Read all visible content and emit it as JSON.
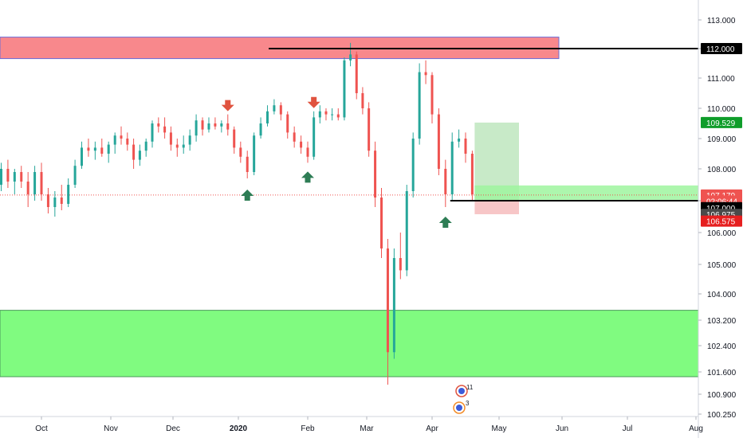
{
  "chart_data": {
    "type": "candlestick",
    "y_axis": {
      "ticks": [
        "113.000",
        "112.000",
        "111.000",
        "110.000",
        "109.000",
        "108.000",
        "107.000",
        "106.000",
        "105.000",
        "104.000",
        "103.200",
        "102.400",
        "101.600",
        "100.900",
        "100.250"
      ],
      "range": [
        100.2,
        113.5
      ]
    },
    "x_axis": {
      "ticks": [
        {
          "label": "Oct",
          "bold": false
        },
        {
          "label": "Nov",
          "bold": false
        },
        {
          "label": "Dec",
          "bold": false
        },
        {
          "label": "2020",
          "bold": true
        },
        {
          "label": "Feb",
          "bold": false
        },
        {
          "label": "Mar",
          "bold": false
        },
        {
          "label": "Apr",
          "bold": false
        },
        {
          "label": "May",
          "bold": false
        },
        {
          "label": "Jun",
          "bold": false
        },
        {
          "label": "Jul",
          "bold": false
        },
        {
          "label": "Aug",
          "bold": false
        }
      ]
    },
    "price_tags": [
      {
        "label": "112.000",
        "value": 112.0,
        "bg": "#000000"
      },
      {
        "label": "109.529",
        "value": 109.529,
        "bg": "#0f9d2a"
      },
      {
        "label": "107.179",
        "value": 107.179,
        "bg": "#ef5350"
      },
      {
        "label": "02:06:44",
        "value": 106.99,
        "bg": "#ef5350"
      },
      {
        "label": "107.000",
        "value": 106.78,
        "bg": "#000000"
      },
      {
        "label": "106.975",
        "value": 106.57,
        "bg": "#4a4a4a"
      },
      {
        "label": "106.575",
        "value": 106.36,
        "bg": "#e61f1f"
      }
    ],
    "zones": [
      {
        "kind": "resistance",
        "y_top": 112.4,
        "y_bottom": 111.66,
        "color": "#f77b80"
      },
      {
        "kind": "support",
        "y_top": 103.5,
        "y_bottom": 101.45,
        "color": "#80fb80"
      }
    ],
    "position": {
      "entry": 107.0,
      "target": 109.529,
      "stop": 106.575
    },
    "lines": [
      {
        "name": "resistance-line",
        "value": 112.0
      },
      {
        "name": "entry-line",
        "value": 107.0
      }
    ],
    "last_price": 107.179,
    "events": [
      {
        "label": "11"
      },
      {
        "label": "3"
      }
    ],
    "colors": {
      "up": "#26a69a",
      "down": "#ef5350",
      "arrow_up": "#2e7d55",
      "arrow_down": "#e0533f"
    },
    "series": [
      {
        "x": "Sep 04",
        "open": 106.3,
        "high": 107.0,
        "low": 106.1,
        "close": 106.9
      },
      {
        "x": "Sep 07",
        "open": 106.9,
        "high": 107.3,
        "low": 106.6,
        "close": 107.1
      },
      {
        "x": "Sep 10",
        "open": 107.1,
        "high": 107.6,
        "low": 106.8,
        "close": 107.5
      },
      {
        "x": "Sep 13",
        "open": 107.5,
        "high": 108.2,
        "low": 107.3,
        "close": 108.0
      },
      {
        "x": "Sep 16",
        "open": 108.0,
        "high": 108.3,
        "low": 107.4,
        "close": 107.6
      },
      {
        "x": "Sep 19",
        "open": 107.6,
        "high": 108.0,
        "low": 107.2,
        "close": 107.9
      },
      {
        "x": "Sep 22",
        "open": 107.9,
        "high": 108.1,
        "low": 107.4,
        "close": 107.6
      },
      {
        "x": "Sep 25",
        "open": 107.6,
        "high": 107.9,
        "low": 106.8,
        "close": 107.2
      },
      {
        "x": "Sep 28",
        "open": 107.2,
        "high": 108.1,
        "low": 107.0,
        "close": 107.9
      },
      {
        "x": "Oct 01",
        "open": 107.9,
        "high": 108.2,
        "low": 107.0,
        "close": 107.2
      },
      {
        "x": "Oct 04",
        "open": 107.2,
        "high": 107.4,
        "low": 106.6,
        "close": 106.8
      },
      {
        "x": "Oct 07",
        "open": 106.8,
        "high": 107.3,
        "low": 106.5,
        "close": 107.1
      },
      {
        "x": "Oct 10",
        "open": 107.1,
        "high": 107.5,
        "low": 106.7,
        "close": 106.9
      },
      {
        "x": "Oct 13",
        "open": 106.9,
        "high": 107.7,
        "low": 106.8,
        "close": 107.5
      },
      {
        "x": "Oct 16",
        "open": 107.5,
        "high": 108.3,
        "low": 107.4,
        "close": 108.1
      },
      {
        "x": "Oct 19",
        "open": 108.1,
        "high": 108.9,
        "low": 108.0,
        "close": 108.7
      },
      {
        "x": "Oct 22",
        "open": 108.7,
        "high": 109.0,
        "low": 108.4,
        "close": 108.6
      },
      {
        "x": "Oct 25",
        "open": 108.6,
        "high": 108.9,
        "low": 108.3,
        "close": 108.7
      },
      {
        "x": "Oct 28",
        "open": 108.7,
        "high": 109.0,
        "low": 108.4,
        "close": 108.5
      },
      {
        "x": "Oct 31",
        "open": 108.5,
        "high": 108.9,
        "low": 108.2,
        "close": 108.8
      },
      {
        "x": "Nov 03",
        "open": 108.8,
        "high": 109.2,
        "low": 108.5,
        "close": 109.1
      },
      {
        "x": "Nov 06",
        "open": 109.1,
        "high": 109.4,
        "low": 108.8,
        "close": 109.0
      },
      {
        "x": "Nov 09",
        "open": 109.0,
        "high": 109.2,
        "low": 108.6,
        "close": 108.8
      },
      {
        "x": "Nov 12",
        "open": 108.8,
        "high": 109.0,
        "low": 108.0,
        "close": 108.3
      },
      {
        "x": "Nov 15",
        "open": 108.3,
        "high": 108.8,
        "low": 108.1,
        "close": 108.6
      },
      {
        "x": "Nov 18",
        "open": 108.6,
        "high": 109.0,
        "low": 108.4,
        "close": 108.9
      },
      {
        "x": "Nov 21",
        "open": 108.9,
        "high": 109.6,
        "low": 108.7,
        "close": 109.5
      },
      {
        "x": "Nov 24",
        "open": 109.5,
        "high": 109.7,
        "low": 109.2,
        "close": 109.4
      },
      {
        "x": "Nov 27",
        "open": 109.4,
        "high": 109.7,
        "low": 109.0,
        "close": 109.2
      },
      {
        "x": "Nov 30",
        "open": 109.2,
        "high": 109.4,
        "low": 108.6,
        "close": 108.8
      },
      {
        "x": "Dec 03",
        "open": 108.8,
        "high": 109.0,
        "low": 108.4,
        "close": 108.7
      },
      {
        "x": "Dec 06",
        "open": 108.7,
        "high": 109.1,
        "low": 108.5,
        "close": 108.8
      },
      {
        "x": "Dec 09",
        "open": 108.8,
        "high": 109.3,
        "low": 108.6,
        "close": 109.1
      },
      {
        "x": "Dec 12",
        "open": 109.1,
        "high": 109.8,
        "low": 108.9,
        "close": 109.6
      },
      {
        "x": "Dec 15",
        "open": 109.6,
        "high": 109.7,
        "low": 109.1,
        "close": 109.3
      },
      {
        "x": "Dec 18",
        "open": 109.3,
        "high": 109.7,
        "low": 109.2,
        "close": 109.5
      },
      {
        "x": "Dec 21",
        "open": 109.5,
        "high": 109.7,
        "low": 109.3,
        "close": 109.4
      },
      {
        "x": "Dec 24",
        "open": 109.4,
        "high": 109.6,
        "low": 109.2,
        "close": 109.5
      },
      {
        "x": "Dec 27",
        "open": 109.5,
        "high": 109.8,
        "low": 109.1,
        "close": 109.3
      },
      {
        "x": "Dec 30",
        "open": 109.3,
        "high": 109.4,
        "low": 108.5,
        "close": 108.7
      },
      {
        "x": "Jan 02",
        "open": 108.7,
        "high": 108.9,
        "low": 108.2,
        "close": 108.4
      },
      {
        "x": "Jan 05",
        "open": 108.4,
        "high": 108.6,
        "low": 107.7,
        "close": 107.9
      },
      {
        "x": "Jan 08",
        "open": 107.9,
        "high": 109.2,
        "low": 107.8,
        "close": 109.1
      },
      {
        "x": "Jan 11",
        "open": 109.1,
        "high": 109.7,
        "low": 109.0,
        "close": 109.5
      },
      {
        "x": "Jan 14",
        "open": 109.5,
        "high": 110.1,
        "low": 109.4,
        "close": 109.9
      },
      {
        "x": "Jan 17",
        "open": 109.9,
        "high": 110.3,
        "low": 109.8,
        "close": 110.1
      },
      {
        "x": "Jan 20",
        "open": 110.1,
        "high": 110.2,
        "low": 109.6,
        "close": 109.8
      },
      {
        "x": "Jan 23",
        "open": 109.8,
        "high": 109.9,
        "low": 109.0,
        "close": 109.2
      },
      {
        "x": "Jan 26",
        "open": 109.2,
        "high": 109.4,
        "low": 108.7,
        "close": 108.9
      },
      {
        "x": "Jan 29",
        "open": 108.9,
        "high": 109.1,
        "low": 108.5,
        "close": 108.7
      },
      {
        "x": "Feb 01",
        "open": 108.7,
        "high": 108.9,
        "low": 108.2,
        "close": 108.4
      },
      {
        "x": "Feb 04",
        "open": 108.4,
        "high": 109.9,
        "low": 108.3,
        "close": 109.7
      },
      {
        "x": "Feb 07",
        "open": 109.7,
        "high": 110.1,
        "low": 109.5,
        "close": 109.9
      },
      {
        "x": "Feb 10",
        "open": 109.9,
        "high": 110.0,
        "low": 109.6,
        "close": 109.8
      },
      {
        "x": "Feb 13",
        "open": 109.8,
        "high": 110.0,
        "low": 109.6,
        "close": 109.8
      },
      {
        "x": "Feb 16",
        "open": 109.8,
        "high": 110.0,
        "low": 109.6,
        "close": 109.7
      },
      {
        "x": "Feb 19",
        "open": 109.7,
        "high": 111.7,
        "low": 109.6,
        "close": 111.6
      },
      {
        "x": "Feb 22",
        "open": 111.6,
        "high": 112.2,
        "low": 111.4,
        "close": 111.8
      },
      {
        "x": "Feb 25",
        "open": 111.8,
        "high": 111.9,
        "low": 110.3,
        "close": 110.5
      },
      {
        "x": "Feb 28",
        "open": 110.5,
        "high": 110.7,
        "low": 109.8,
        "close": 110.0
      },
      {
        "x": "Mar 02",
        "open": 110.0,
        "high": 110.2,
        "low": 108.4,
        "close": 108.6
      },
      {
        "x": "Mar 05",
        "open": 108.6,
        "high": 108.9,
        "low": 106.8,
        "close": 107.1
      },
      {
        "x": "Mar 08",
        "open": 107.1,
        "high": 107.4,
        "low": 105.2,
        "close": 105.5
      },
      {
        "x": "Mar 11",
        "open": 105.5,
        "high": 105.8,
        "low": 101.2,
        "close": 102.2
      },
      {
        "x": "Mar 14",
        "open": 102.2,
        "high": 105.5,
        "low": 102.0,
        "close": 105.2
      },
      {
        "x": "Mar 17",
        "open": 105.2,
        "high": 106.0,
        "low": 104.5,
        "close": 104.8
      },
      {
        "x": "Mar 20",
        "open": 104.8,
        "high": 107.5,
        "low": 104.6,
        "close": 107.3
      },
      {
        "x": "Mar 23",
        "open": 107.3,
        "high": 109.2,
        "low": 107.1,
        "close": 109.0
      },
      {
        "x": "Mar 26",
        "open": 109.0,
        "high": 111.5,
        "low": 108.8,
        "close": 111.2
      },
      {
        "x": "Mar 29",
        "open": 111.2,
        "high": 111.6,
        "low": 110.8,
        "close": 111.1
      },
      {
        "x": "Apr 01",
        "open": 111.1,
        "high": 111.2,
        "low": 109.5,
        "close": 109.8
      },
      {
        "x": "Apr 04",
        "open": 109.8,
        "high": 110.0,
        "low": 107.8,
        "close": 108.0
      },
      {
        "x": "Apr 07",
        "open": 108.0,
        "high": 108.3,
        "low": 106.8,
        "close": 107.2
      },
      {
        "x": "Apr 10",
        "open": 107.2,
        "high": 109.2,
        "low": 107.0,
        "close": 108.9
      },
      {
        "x": "Apr 13",
        "open": 108.9,
        "high": 109.3,
        "low": 108.7,
        "close": 109.0
      },
      {
        "x": "Apr 16",
        "open": 109.0,
        "high": 109.2,
        "low": 108.2,
        "close": 108.5
      },
      {
        "x": "Apr 19",
        "open": 108.5,
        "high": 108.6,
        "low": 107.0,
        "close": 107.2
      }
    ]
  }
}
